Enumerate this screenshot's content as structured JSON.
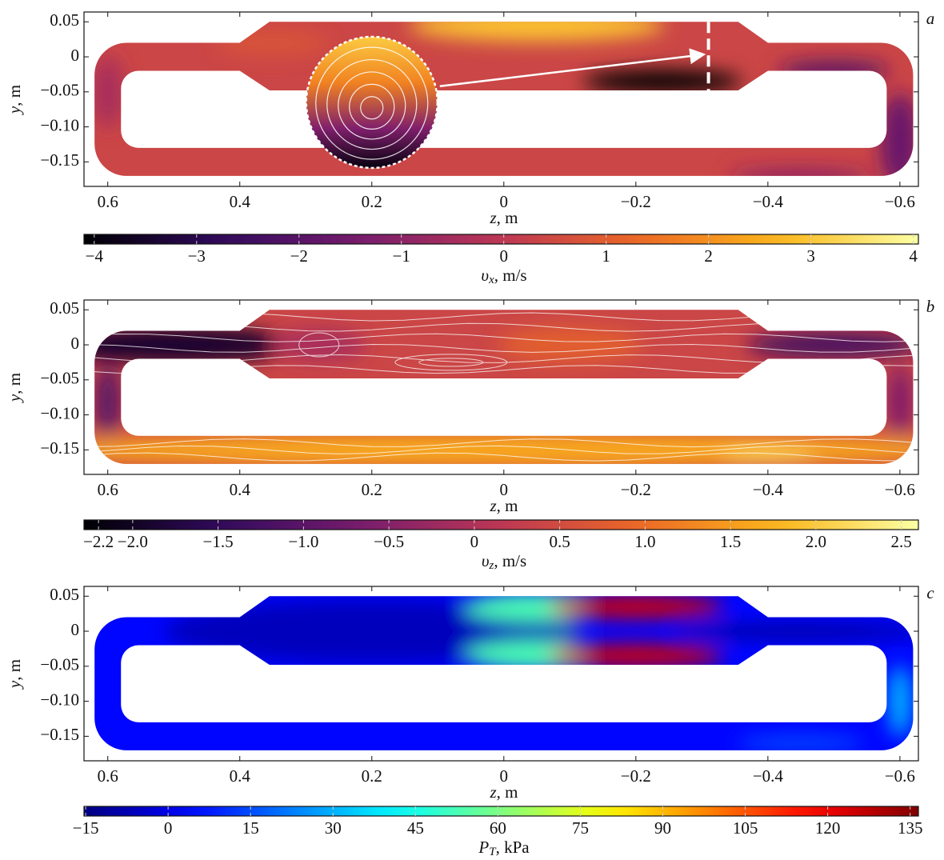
{
  "chart_data": [
    {
      "type": "field",
      "panel_label": "a",
      "xlabel": {
        "symbol": "z",
        "unit": ", m"
      },
      "ylabel": {
        "symbol": "y",
        "unit": ", m"
      },
      "xlim": [
        0.636,
        -0.628
      ],
      "ylim": [
        -0.185,
        0.064
      ],
      "xticks": [
        0.6,
        0.4,
        0.2,
        0,
        {
          "value": -0.2,
          "label": "−0.2"
        },
        {
          "value": -0.4,
          "label": "−0.4"
        },
        {
          "value": -0.6,
          "label": "−0.6"
        }
      ],
      "yticks": [
        0.05,
        0,
        {
          "value": -0.05,
          "label": "−0.05"
        },
        {
          "value": -0.1,
          "label": "−0.10"
        },
        {
          "value": -0.15,
          "label": "−0.15"
        }
      ],
      "colorbar": {
        "colormap": "inferno",
        "symbol": "υ",
        "sub": "x",
        "unit": ", m/s",
        "lim": [
          -4.1,
          4.05
        ],
        "ticks": [
          {
            "value": -4,
            "label": "−4"
          },
          {
            "value": -3,
            "label": "−3"
          },
          {
            "value": -2,
            "label": "−2"
          },
          {
            "value": -1,
            "label": "−1"
          },
          0,
          1,
          2,
          3,
          4
        ]
      }
    },
    {
      "type": "field",
      "panel_label": "b",
      "xlabel": {
        "symbol": "z",
        "unit": ", m"
      },
      "ylabel": {
        "symbol": "y",
        "unit": ", m"
      },
      "xlim": [
        0.636,
        -0.628
      ],
      "ylim": [
        -0.185,
        0.064
      ],
      "xticks": [
        0.6,
        0.4,
        0.2,
        0,
        {
          "value": -0.2,
          "label": "−0.2"
        },
        {
          "value": -0.4,
          "label": "−0.4"
        },
        {
          "value": -0.6,
          "label": "−0.6"
        }
      ],
      "yticks": [
        0.05,
        0,
        {
          "value": -0.05,
          "label": "−0.05"
        },
        {
          "value": -0.1,
          "label": "−0.10"
        },
        {
          "value": -0.15,
          "label": "−0.15"
        }
      ],
      "colorbar": {
        "colormap": "inferno",
        "symbol": "υ",
        "sub": "z",
        "unit": ", m/s",
        "lim": [
          -2.285,
          2.6
        ],
        "ticks": [
          {
            "value": -2.2,
            "label": "−2.2"
          },
          {
            "value": -2,
            "label": "−2.0"
          },
          {
            "value": -1.5,
            "label": "−1.5"
          },
          {
            "value": -1,
            "label": "−1.0"
          },
          {
            "value": -0.5,
            "label": "−0.5"
          },
          0,
          0.5,
          {
            "value": 1,
            "label": "1.0"
          },
          1.5,
          {
            "value": 2,
            "label": "2.0"
          },
          2.5
        ]
      }
    },
    {
      "type": "field",
      "panel_label": "c",
      "xlabel": {
        "symbol": "z",
        "unit": ", m"
      },
      "ylabel": {
        "symbol": "y",
        "unit": ", m"
      },
      "xlim": [
        0.636,
        -0.628
      ],
      "ylim": [
        -0.185,
        0.064
      ],
      "xticks": [
        0.6,
        0.4,
        0.2,
        0,
        {
          "value": -0.2,
          "label": "−0.2"
        },
        {
          "value": -0.4,
          "label": "−0.4"
        },
        {
          "value": -0.6,
          "label": "−0.6"
        }
      ],
      "yticks": [
        0.05,
        0,
        {
          "value": -0.05,
          "label": "−0.05"
        },
        {
          "value": -0.1,
          "label": "−0.10"
        },
        {
          "value": -0.15,
          "label": "−0.15"
        }
      ],
      "colorbar": {
        "colormap": "jet",
        "symbol": "P",
        "sub": "T",
        "unit": ", kPa",
        "lim": [
          -15.3,
          136.5
        ],
        "ticks": [
          {
            "value": -15,
            "label": "−15"
          },
          0,
          15,
          30,
          45,
          60,
          75,
          90,
          105,
          120,
          135
        ]
      }
    }
  ]
}
